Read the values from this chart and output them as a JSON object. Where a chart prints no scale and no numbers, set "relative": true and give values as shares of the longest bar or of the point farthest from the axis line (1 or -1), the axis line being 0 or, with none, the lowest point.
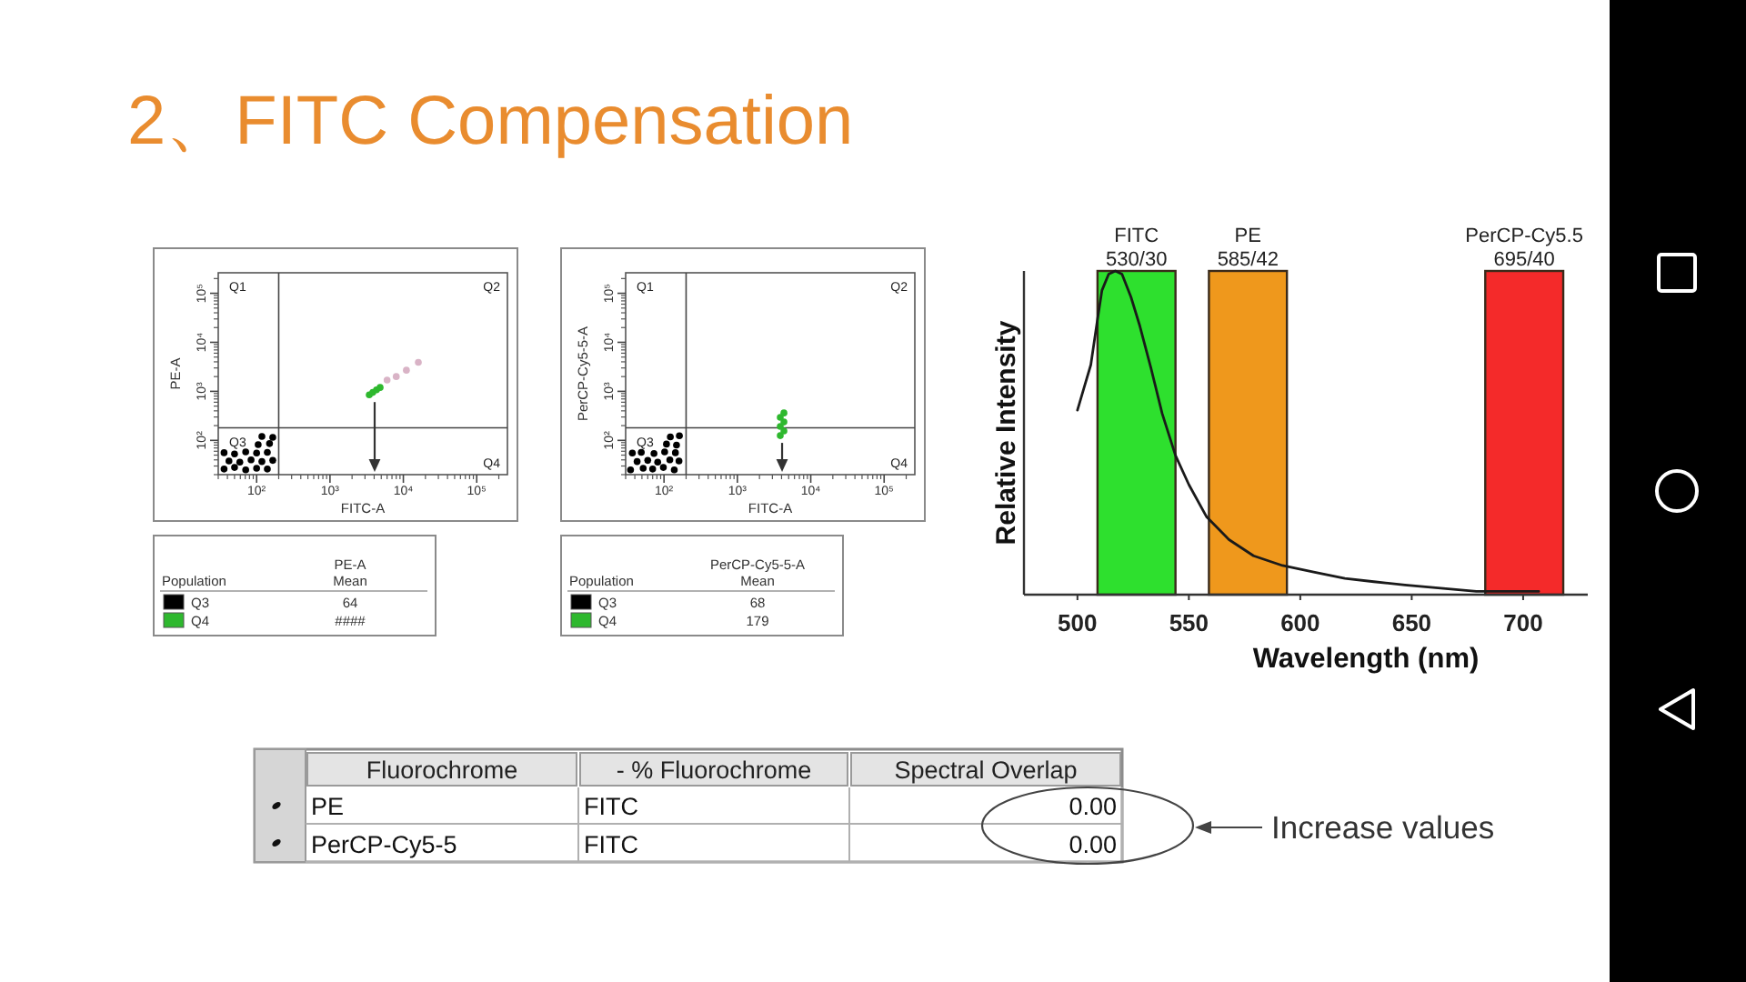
{
  "chart_data": [
    {
      "type": "scatter",
      "title": "2、FITC Compensation",
      "xlabel": "FITC-A",
      "ylabel": "PE-A",
      "log": "xy",
      "xlim": [
        30,
        262144
      ],
      "ylim": [
        20,
        262144
      ],
      "xticks": [
        {
          "value": 100,
          "label": "10²"
        },
        {
          "value": 1000,
          "label": "10³"
        },
        {
          "value": 10000,
          "label": "10⁴"
        },
        {
          "value": 100000,
          "label": "10⁵"
        }
      ],
      "yticks": [
        {
          "value": 100,
          "label": "10²"
        },
        {
          "value": 1000,
          "label": "10³"
        },
        {
          "value": 10000,
          "label": "10⁴"
        },
        {
          "value": 100000,
          "label": "10⁵"
        }
      ],
      "ref_lines": [
        {
          "axis": "x",
          "value": 200,
          "color": "#444444"
        },
        {
          "axis": "y",
          "value": 180,
          "color": "#444444"
        }
      ],
      "annotations": [
        "Q1",
        "Q2",
        "Q3",
        "Q4",
        "Population",
        "PE-A Mean",
        "64",
        "####"
      ],
      "legend": "bottom",
      "marker": "circle",
      "series": [
        {
          "name": "Q3",
          "color": "#000000",
          "x": [
            36,
            50,
            71,
            100,
            140,
            42,
            59,
            84,
            118,
            166,
            36,
            50,
            71,
            100,
            140,
            105,
            150,
            118,
            166
          ],
          "values": [
            26,
            28,
            25,
            27,
            26,
            38,
            36,
            40,
            37,
            39,
            56,
            53,
            58,
            55,
            57,
            82,
            86,
            120,
            115
          ]
        },
        {
          "name": "Q4",
          "color": "#2eb82e",
          "x": [
            3430,
            3830,
            4300,
            4820
          ],
          "values": [
            850,
            950,
            1070,
            1200
          ]
        },
        {
          "color": "#d9b3c6",
          "x": [
            6000,
            8000,
            11000,
            16000
          ],
          "values": [
            1700,
            2000,
            2700,
            3900
          ]
        }
      ]
    },
    {
      "type": "scatter",
      "xlabel": "FITC-A",
      "ylabel": "PerCP-Cy5-5-A",
      "log": "xy",
      "xlim": [
        30,
        262144
      ],
      "ylim": [
        20,
        262144
      ],
      "xticks": [
        {
          "value": 100,
          "label": "10²"
        },
        {
          "value": 1000,
          "label": "10³"
        },
        {
          "value": 10000,
          "label": "10⁴"
        },
        {
          "value": 100000,
          "label": "10⁵"
        }
      ],
      "yticks": [
        {
          "value": 100,
          "label": "10²"
        },
        {
          "value": 1000,
          "label": "10³"
        },
        {
          "value": 10000,
          "label": "10⁴"
        },
        {
          "value": 100000,
          "label": "10⁵"
        }
      ],
      "ref_lines": [
        {
          "axis": "x",
          "value": 200,
          "color": "#444444"
        },
        {
          "axis": "y",
          "value": 180,
          "color": "#444444"
        }
      ],
      "annotations": [
        "Q1",
        "Q2",
        "Q3",
        "Q4",
        "Population",
        "PerCP-Cy5-5-A Mean",
        "68",
        "179"
      ],
      "legend": "bottom",
      "marker": "circle",
      "series": [
        {
          "name": "Q3",
          "color": "#000000",
          "x": [
            35,
            52,
            70,
            98,
            138,
            43,
            60,
            82,
            120,
            160,
            37,
            49,
            73,
            102,
            143,
            108,
            148,
            122,
            162
          ],
          "values": [
            25,
            27,
            26,
            28,
            25,
            37,
            39,
            36,
            40,
            38,
            55,
            57,
            54,
            58,
            56,
            84,
            80,
            118,
            124
          ]
        },
        {
          "name": "Q4",
          "color": "#2eb82e",
          "x": [
            3840,
            4310,
            3840,
            4310,
            3840,
            4310
          ],
          "values": [
            125,
            155,
            192,
            237,
            294,
            363
          ]
        }
      ]
    },
    {
      "type": "line",
      "relative": true,
      "xlabel": "Wavelength (nm)",
      "ylabel": "Relative Intensity",
      "xlim": [
        476,
        729
      ],
      "xticks": [
        500,
        550,
        600,
        650,
        700
      ],
      "x": [
        500,
        503,
        506,
        509,
        511,
        514,
        517,
        520,
        524,
        528,
        533,
        538,
        544,
        550,
        558,
        568,
        579,
        592,
        606,
        620,
        633,
        647,
        663,
        679,
        696,
        707
      ],
      "series": [
        {
          "color": "#1a1a1a",
          "values": [
            0.57,
            0.64,
            0.71,
            0.85,
            0.94,
            0.99,
            1.0,
            0.99,
            0.92,
            0.83,
            0.7,
            0.56,
            0.43,
            0.34,
            0.24,
            0.17,
            0.12,
            0.09,
            0.07,
            0.05,
            0.04,
            0.03,
            0.02,
            0.01,
            0.01,
            0.01
          ]
        }
      ],
      "bands": [
        {
          "axis": "x",
          "from": 509,
          "to": 544,
          "label": "FITC 530/30",
          "color": "#2ee02e"
        },
        {
          "axis": "x",
          "from": 559,
          "to": 594,
          "label": "PE 585/42",
          "color": "#ef981c"
        },
        {
          "axis": "x",
          "from": 683,
          "to": 718,
          "label": "PerCP-Cy5.5 695/40",
          "color": "#f42a2a"
        }
      ]
    },
    {
      "type": "other",
      "annotations": [
        "Fluorochrome",
        "- % Fluorochrome",
        "Spectral Overlap",
        "PE",
        "FITC",
        "0.00",
        "PerCP-Cy5-5",
        "FITC",
        "0.00",
        "Increase values"
      ]
    }
  ]
}
